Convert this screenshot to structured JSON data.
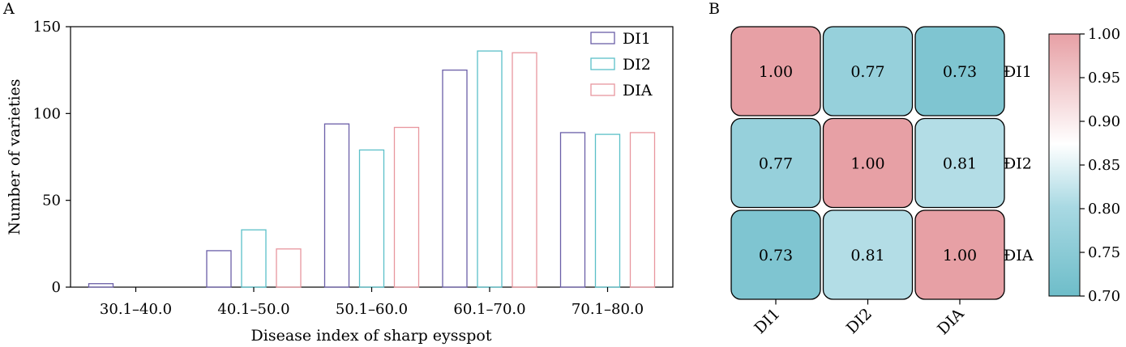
{
  "chart_data": [
    {
      "panel_label": "A",
      "type": "bar",
      "title": "",
      "xlabel": "Disease index of sharp eysspot",
      "ylabel": "Number of varieties",
      "categories": [
        "30.1–40.0",
        "40.1–50.0",
        "50.1–60.0",
        "60.1–70.0",
        "70.1–80.0"
      ],
      "series": [
        {
          "name": "DI1",
          "color": "#6b5fa8",
          "values": [
            2,
            21,
            94,
            125,
            89
          ]
        },
        {
          "name": "DI2",
          "color": "#5bbfc8",
          "values": [
            0,
            33,
            79,
            136,
            88
          ]
        },
        {
          "name": "DIA",
          "color": "#e8969e",
          "values": [
            0,
            22,
            92,
            135,
            89
          ]
        }
      ],
      "ylim": [
        0,
        150
      ],
      "yticks": [
        0,
        50,
        100,
        150
      ],
      "ytick_labels": [
        "0",
        "50",
        "100",
        "150"
      ],
      "bar_fill": "none",
      "legend": "top-right",
      "grid": false
    },
    {
      "panel_label": "B",
      "type": "heatmap",
      "title": "",
      "row_labels": [
        "DI1",
        "DI2",
        "DIA"
      ],
      "col_labels": [
        "DI1",
        "DI2",
        "DIA"
      ],
      "values": [
        [
          "1.00",
          "0.77",
          "0.73"
        ],
        [
          "0.77",
          "1.00",
          "0.81"
        ],
        [
          "0.73",
          "0.81",
          "1.00"
        ]
      ],
      "colorbar": {
        "range": [
          0.7,
          1.0
        ],
        "ticks": [
          "1.00",
          "0.95",
          "0.90",
          "0.85",
          "0.80",
          "0.75",
          "0.70"
        ],
        "colors": [
          "#6ebdc9",
          "#a9d9e3",
          "#ffffff",
          "#e7a0a5"
        ]
      },
      "grid": false
    }
  ]
}
